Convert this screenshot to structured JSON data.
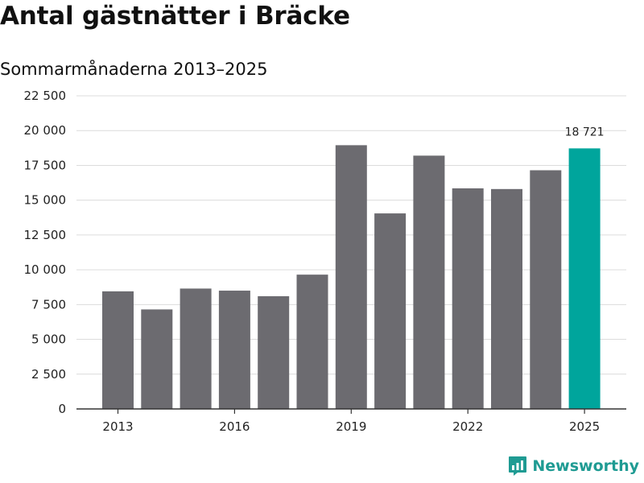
{
  "title": "Antal gästnätter i Bräcke",
  "subtitle": "Sommarmånaderna 2013–2025",
  "brand": {
    "name": "Newsworthy",
    "color": "#1f9b93",
    "icon": "newsworthy-logo-icon"
  },
  "chart_data": {
    "type": "bar",
    "title": "Antal gästnätter i Bräcke",
    "subtitle": "Sommarmånaderna 2013–2025",
    "x": [
      2013,
      2014,
      2015,
      2016,
      2017,
      2018,
      2019,
      2020,
      2021,
      2022,
      2023,
      2024,
      2025
    ],
    "values": [
      8450,
      7150,
      8650,
      8500,
      8100,
      9650,
      18950,
      14050,
      18200,
      15850,
      15800,
      17150,
      18721
    ],
    "x_tick_labels": [
      "2013",
      "2016",
      "2019",
      "2022",
      "2025"
    ],
    "x_tick_values": [
      2013,
      2016,
      2019,
      2022,
      2025
    ],
    "y_tick_labels": [
      "0",
      "2 500",
      "5 000",
      "7 500",
      "10 000",
      "12 500",
      "15 000",
      "17 500",
      "20 000",
      "22 500"
    ],
    "y_tick_values": [
      0,
      2500,
      5000,
      7500,
      10000,
      12500,
      15000,
      17500,
      20000,
      22500
    ],
    "ylim": [
      0,
      22500
    ],
    "xlabel": "",
    "ylabel": "",
    "grid": true,
    "legend": false,
    "bar_color": "#6c6b70",
    "highlight_color": "#00a59c",
    "highlight_index": 12,
    "data_labels": [
      {
        "index": 12,
        "text": "18 721"
      }
    ]
  }
}
